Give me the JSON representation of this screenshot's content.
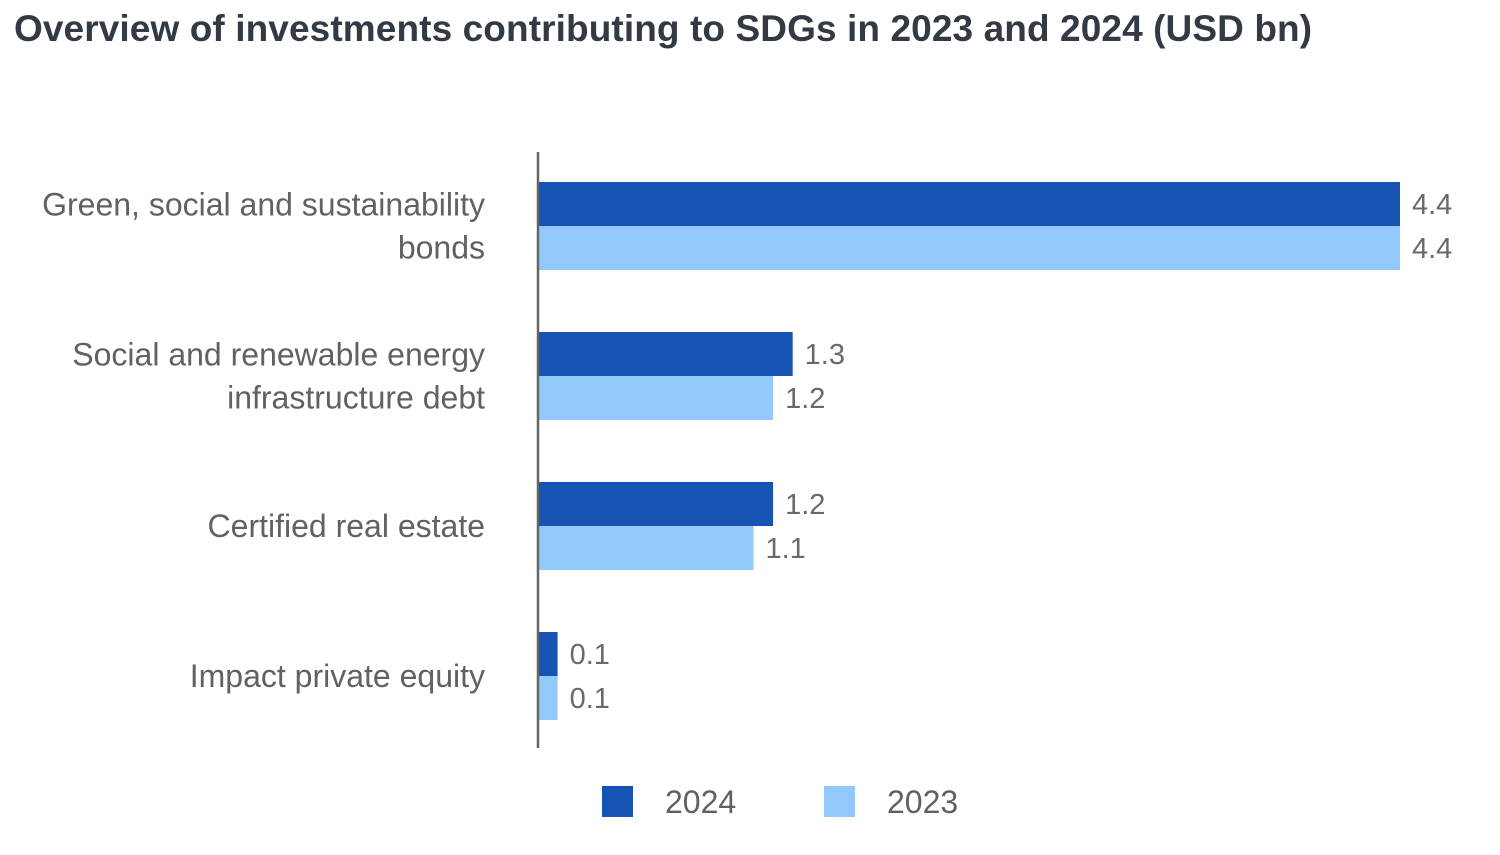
{
  "chart_data": {
    "type": "bar",
    "orientation": "horizontal",
    "title": "Overview of investments contributing to SDGs in 2023 and 2024 (USD bn)",
    "categories": [
      [
        "Green, social and sustainability",
        "bonds"
      ],
      [
        "Social and renewable energy",
        "infrastructure debt"
      ],
      [
        "Certified real estate"
      ],
      [
        "Impact private equity"
      ]
    ],
    "series": [
      {
        "name": "2024",
        "color": "#1653b3",
        "values": [
          4.4,
          1.3,
          1.2,
          0.1
        ],
        "labels": [
          "4.4",
          "1.3",
          "1.2",
          "0.1"
        ]
      },
      {
        "name": "2023",
        "color": "#93c8fd",
        "values": [
          4.4,
          1.2,
          1.1,
          0.1
        ],
        "labels": [
          "4.4",
          "1.2",
          "1.1",
          "0.1"
        ]
      }
    ],
    "xlim": [
      0,
      4.4
    ],
    "grid": false,
    "axis_line_color": "#666666",
    "legend_position": "bottom"
  }
}
